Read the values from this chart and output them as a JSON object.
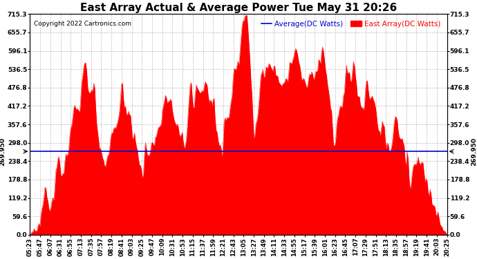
{
  "title": "East Array Actual & Average Power Tue May 31 20:26",
  "copyright": "Copyright 2022 Cartronics.com",
  "legend_avg": "Average(DC Watts)",
  "legend_east": "East Array(DC Watts)",
  "avg_value": 269.95,
  "ymin": 0.0,
  "ymax": 715.3,
  "yticks": [
    0.0,
    59.6,
    119.2,
    178.8,
    238.4,
    298.0,
    357.6,
    417.2,
    476.8,
    536.5,
    596.1,
    655.7,
    715.3
  ],
  "avg_label": "269.950",
  "fill_color": "#ff0000",
  "avg_line_color": "#0000cc",
  "title_color": "#000000",
  "copyright_color": "#000000",
  "legend_avg_color": "#0000cc",
  "legend_east_color": "#ff0000",
  "ytick_color": "#000000",
  "grid_color": "#aaaaaa",
  "background_color": "#ffffff",
  "xlabel_fontsize": 6.0,
  "title_fontsize": 11,
  "xtick_labels": [
    "05:23",
    "05:47",
    "06:07",
    "06:31",
    "06:55",
    "07:13",
    "07:35",
    "07:57",
    "08:19",
    "08:41",
    "09:03",
    "09:25",
    "09:47",
    "10:09",
    "10:31",
    "10:53",
    "11:15",
    "11:37",
    "11:59",
    "12:21",
    "12:43",
    "13:05",
    "13:27",
    "13:49",
    "14:11",
    "14:33",
    "14:55",
    "15:17",
    "15:39",
    "16:01",
    "16:23",
    "16:45",
    "17:07",
    "17:29",
    "17:51",
    "18:13",
    "18:35",
    "18:57",
    "19:19",
    "19:41",
    "20:03",
    "20:25"
  ],
  "n_points": 420
}
